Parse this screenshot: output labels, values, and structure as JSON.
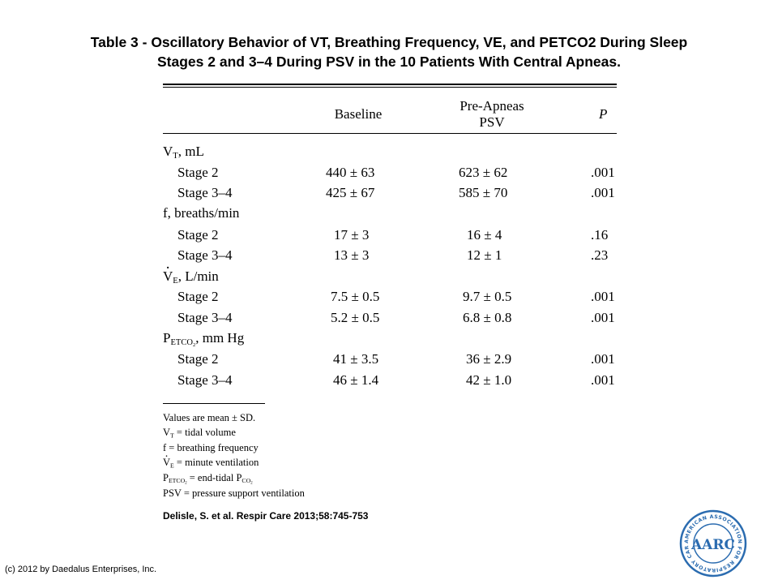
{
  "title": {
    "line1": "Table 3 - Oscillatory Behavior of VT, Breathing Frequency, VE, and PETCO2 During Sleep",
    "line2": "Stages 2 and 3–4 During PSV in the 10 Patients With Central Apneas."
  },
  "table": {
    "headers": {
      "baseline": "Baseline",
      "pre_apneas_1": "Pre-Apneas",
      "pre_apneas_2": "PSV",
      "p": "P"
    },
    "groups": [
      {
        "label": "V",
        "sub": "T",
        "unit": ", mL",
        "rows": [
          {
            "stage": "Stage 2",
            "baseline": "440 ± 63",
            "psv": "623 ± 62",
            "p": ".001"
          },
          {
            "stage": "Stage 3–4",
            "baseline": "425 ± 67",
            "psv": "585 ± 70",
            "p": ".001"
          }
        ]
      },
      {
        "label": "f, breaths/min",
        "sub": "",
        "unit": "",
        "rows": [
          {
            "stage": "Stage 2",
            "baseline": "17 ± 3",
            "psv": "16 ± 4",
            "p": ".16"
          },
          {
            "stage": "Stage 3–4",
            "baseline": "13 ± 3",
            "psv": "12 ± 1",
            "p": ".23"
          }
        ]
      },
      {
        "label": "V",
        "sub": "E",
        "unit": ", L/min",
        "rows": [
          {
            "stage": "Stage 2",
            "baseline": "7.5 ± 0.5",
            "psv": "9.7 ± 0.5",
            "p": ".001"
          },
          {
            "stage": "Stage 3–4",
            "baseline": "5.2 ± 0.5",
            "psv": "6.8 ± 0.8",
            "p": ".001"
          }
        ]
      },
      {
        "label": "P",
        "sub": "ETCO",
        "sub2": "2",
        "unit": ", mm Hg",
        "rows": [
          {
            "stage": "Stage 2",
            "baseline": "41 ± 3.5",
            "psv": "36 ± 2.9",
            "p": ".001"
          },
          {
            "stage": "Stage 3–4",
            "baseline": "46 ± 1.4",
            "psv": "42 ± 1.0",
            "p": ".001"
          }
        ]
      }
    ]
  },
  "footnotes": {
    "mean": "Values are mean ± SD.",
    "vt_sym": "V",
    "vt_sub": "T",
    "vt_def": " = tidal volume",
    "f_def": "f = breathing frequency",
    "ve_sym": "V",
    "ve_sub": "E",
    "ve_def": " = minute ventilation",
    "pet_sym": "P",
    "pet_sub": "ETCO",
    "pet_sub2": "2",
    "pet_def": " = end-tidal P",
    "pet_def_sub": "CO",
    "pet_def_sub2": "2",
    "psv_def": "PSV = pressure support ventilation"
  },
  "citation": "Delisle, S. et al. Respir Care 2013;58:745-753",
  "copyright": "(c) 2012 by Daedalus Enterprises, Inc.",
  "logo": {
    "arc_text": "AMERICAN ASSOCIATION FOR RESPIRATORY CARE",
    "letters": "AARC",
    "color": "#2b6cb0"
  }
}
